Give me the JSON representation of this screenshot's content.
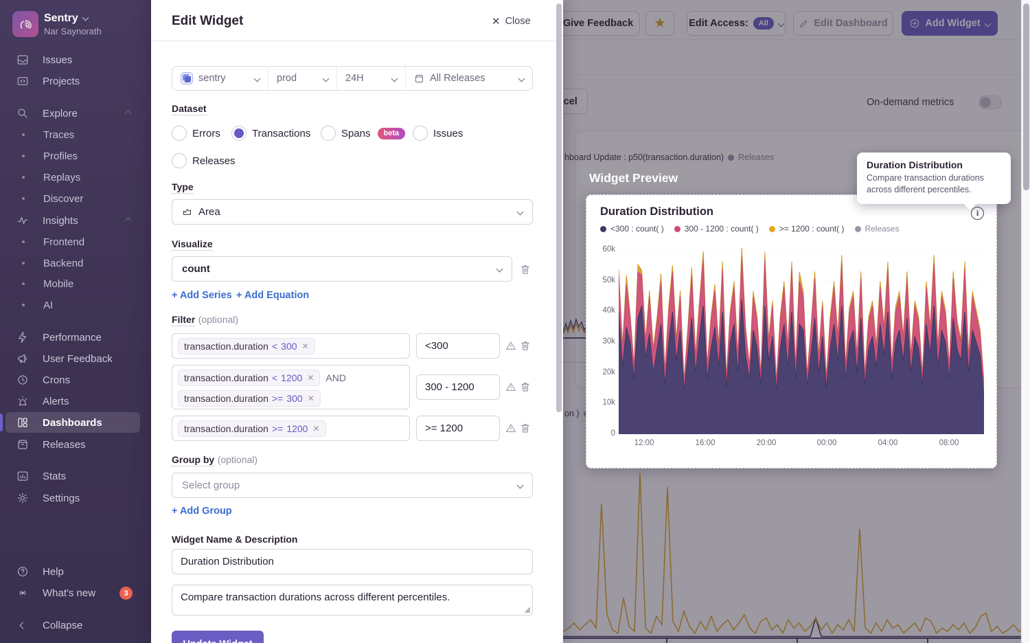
{
  "sidebar": {
    "org_name": "Sentry",
    "org_user": "Nar Saynorath",
    "issues": "Issues",
    "projects": "Projects",
    "explore": "Explore",
    "traces": "Traces",
    "profiles": "Profiles",
    "replays": "Replays",
    "discover": "Discover",
    "insights": "Insights",
    "frontend": "Frontend",
    "backend": "Backend",
    "mobile": "Mobile",
    "ai": "AI",
    "performance": "Performance",
    "user_feedback": "User Feedback",
    "crons": "Crons",
    "alerts": "Alerts",
    "dashboards": "Dashboards",
    "releases": "Releases",
    "stats": "Stats",
    "settings": "Settings",
    "help": "Help",
    "whats_new": "What's new",
    "whats_new_badge": "3",
    "collapse": "Collapse"
  },
  "modal": {
    "title": "Edit Widget",
    "close": "Close",
    "filters": {
      "project": "sentry",
      "env": "prod",
      "period": "24H",
      "releases": "All Releases"
    },
    "dataset": {
      "label": "Dataset",
      "errors": "Errors",
      "transactions": "Transactions",
      "spans": "Spans",
      "beta": "beta",
      "issues": "Issues",
      "releases": "Releases"
    },
    "type": {
      "label": "Type",
      "value": "Area"
    },
    "visualize": {
      "label": "Visualize",
      "value": "count",
      "add_series": "+ Add Series",
      "add_equation": "+ Add Equation"
    },
    "filter": {
      "label": "Filter",
      "optional": "(optional)",
      "rows": [
        {
          "tokens": [
            {
              "key": "transaction.duration",
              "op": "<",
              "val": "300"
            }
          ],
          "alias": "<300"
        },
        {
          "tokens": [
            {
              "key": "transaction.duration",
              "op": "<",
              "val": "1200"
            },
            {
              "key": "transaction.duration",
              "op": ">=",
              "val": "300"
            }
          ],
          "joiner": "AND",
          "alias": "300 - 1200"
        },
        {
          "tokens": [
            {
              "key": "transaction.duration",
              "op": ">=",
              "val": "1200"
            }
          ],
          "alias": ">= 1200"
        }
      ]
    },
    "group_by": {
      "label": "Group by",
      "optional": "(optional)",
      "placeholder": "Select group",
      "add_group": "+ Add Group"
    },
    "name_section": {
      "label": "Widget Name & Description",
      "name": "Duration Distribution",
      "description": "Compare transaction durations across different percentiles."
    },
    "submit": "Update Widget"
  },
  "header": {
    "give_feedback": "Give Feedback",
    "edit_access": "Edit Access:",
    "edit_access_value": "All",
    "edit_dashboard": "Edit Dashboard",
    "add_widget": "Add Widget",
    "cancel": "Cancel",
    "on_demand": "On-demand metrics"
  },
  "background": {
    "legend_fragment": "hboard Update : p50(transaction.duration)",
    "legend_releases": "Releases",
    "fragment_text": "on )"
  },
  "preview": {
    "heading": "Widget Preview",
    "widget_title": "Duration Distribution",
    "legend": [
      {
        "label": "<300 : count( )",
        "color": "#453862"
      },
      {
        "label": "300 - 1200 : count( )",
        "color": "#ce4a6e"
      },
      {
        "label": ">= 1200 : count( )",
        "color": "#e5a718"
      },
      {
        "label": "Releases",
        "color": "#9d93ab"
      }
    ]
  },
  "tooltip": {
    "title": "Duration Distribution",
    "body": "Compare transaction durations across different percentiles."
  },
  "chart_data": [
    {
      "type": "area",
      "stacked": true,
      "title": "Duration Distribution",
      "x_ticks": [
        "12:00",
        "16:00",
        "20:00",
        "00:00",
        "04:00",
        "08:00"
      ],
      "y_ticks": [
        "0",
        "10k",
        "20k",
        "30k",
        "40k",
        "50k",
        "60k"
      ],
      "ylim": [
        0,
        62
      ],
      "unit": "thousands",
      "legend_position": "top-left",
      "grid": "faint-dotted",
      "series": [
        {
          "name": "<300 : count()",
          "color": "#4b4272",
          "edge": "#3d3660",
          "values": [
            40,
            22,
            35,
            30,
            18,
            38,
            42,
            25,
            33,
            20,
            28,
            36,
            16,
            30,
            40,
            24,
            34,
            14,
            26,
            38,
            20,
            32,
            42,
            18,
            28,
            35,
            22,
            40,
            15,
            30,
            36,
            20,
            44,
            26,
            18,
            34,
            28,
            16,
            42,
            24,
            32,
            14,
            28,
            36,
            22,
            40,
            18,
            36,
            34,
            16,
            26,
            38,
            20,
            32,
            15,
            28,
            36,
            24,
            42,
            18,
            30,
            34,
            20,
            38,
            16,
            28,
            32,
            22,
            36,
            26,
            40,
            18,
            30,
            34,
            24,
            38,
            20,
            32,
            28,
            16,
            36,
            26,
            42,
            22,
            34,
            30,
            18,
            38,
            28,
            24,
            40,
            20,
            34,
            30,
            26,
            12
          ]
        },
        {
          "name": "300 - 1200 : count()",
          "color": "#d0567c",
          "edge": "#c44d6e",
          "values": [
            12,
            6,
            14,
            8,
            4,
            15,
            10,
            5,
            12,
            7,
            9,
            14,
            4,
            10,
            13,
            6,
            11,
            3,
            8,
            14,
            5,
            10,
            15,
            4,
            9,
            12,
            6,
            14,
            3,
            9,
            12,
            5,
            14,
            8,
            4,
            11,
            9,
            3,
            15,
            6,
            10,
            3,
            9,
            12,
            6,
            14,
            4,
            14,
            11,
            3,
            8,
            13,
            5,
            10,
            3,
            9,
            12,
            7,
            14,
            4,
            10,
            11,
            5,
            13,
            3,
            9,
            10,
            6,
            12,
            8,
            14,
            4,
            10,
            11,
            7,
            13,
            5,
            10,
            9,
            3,
            12,
            8,
            14,
            6,
            11,
            9,
            4,
            13,
            8,
            6,
            14,
            5,
            11,
            9,
            7,
            4
          ]
        },
        {
          "name": ">= 1200 : count()",
          "color": "#e2a63c",
          "edge": "#d29a25",
          "values": [
            2,
            1,
            3,
            1,
            0.5,
            2.5,
            1.5,
            0.8,
            2,
            1,
            1.5,
            2.5,
            0.6,
            1.8,
            2.2,
            1,
            2,
            0.5,
            1.2,
            2.5,
            0.8,
            1.6,
            2.8,
            0.5,
            1.4,
            2,
            1,
            2.4,
            0.5,
            1.5,
            2,
            0.8,
            3,
            1.2,
            0.6,
            1.8,
            1.4,
            0.5,
            2.5,
            1,
            1.6,
            0.5,
            1.4,
            2,
            1,
            2.4,
            0.6,
            3,
            1.8,
            0.5,
            1.2,
            2.2,
            0.8,
            1.6,
            0.5,
            1.4,
            2,
            1.2,
            2.6,
            0.6,
            1.6,
            1.8,
            0.8,
            2.2,
            0.5,
            1.4,
            1.6,
            1,
            2,
            1.2,
            2.4,
            0.6,
            1.6,
            1.8,
            1.2,
            2.2,
            0.8,
            1.6,
            1.4,
            0.5,
            2,
            1.2,
            2.6,
            1,
            1.8,
            1.5,
            0.6,
            2.2,
            1.2,
            1,
            2.4,
            0.8,
            1.8,
            1.5,
            1.1,
            1
          ]
        }
      ]
    },
    {
      "type": "line",
      "title": "background dashboard widget (dimmed)",
      "ylim": [
        0,
        100
      ],
      "series": [
        {
          "name": "gold-series",
          "color": "#d9a832",
          "values": [
            4,
            6,
            9,
            5,
            8,
            11,
            6,
            80,
            14,
            5,
            3,
            24,
            7,
            4,
            98,
            6,
            3,
            13,
            8,
            90,
            10,
            4,
            16,
            7,
            3,
            10,
            5,
            13,
            4,
            8,
            11,
            5,
            9,
            14,
            6,
            3,
            10,
            12,
            5,
            8,
            3,
            11,
            6,
            9,
            4,
            7,
            12,
            5,
            9,
            3,
            8,
            5,
            11,
            4,
            65,
            6,
            3,
            9,
            4,
            11,
            6,
            8,
            3,
            6,
            9,
            4,
            12,
            10,
            3,
            6,
            4,
            8,
            5,
            9,
            3,
            6,
            13,
            15,
            4,
            7,
            3,
            5,
            8,
            4,
            6,
            9
          ]
        },
        {
          "name": "navy-series",
          "color": "#3f3863",
          "values": [
            1,
            1,
            1,
            1,
            1,
            1,
            1,
            1,
            1,
            1,
            1,
            1,
            1,
            1,
            1,
            1,
            1,
            1,
            1,
            1,
            1,
            1,
            1,
            1,
            1,
            1,
            1,
            1,
            1,
            1,
            1,
            1,
            1,
            1,
            1,
            1,
            1,
            1,
            1,
            1,
            1,
            1,
            1,
            1,
            1,
            1,
            12,
            1,
            1,
            1,
            1,
            1,
            1,
            1,
            1,
            1,
            1,
            1,
            1,
            1,
            1,
            1,
            1,
            1,
            1,
            1,
            1,
            1,
            1,
            1,
            1,
            1,
            1,
            1,
            1,
            1,
            1,
            1,
            1,
            1,
            1,
            1,
            1,
            1,
            1,
            1
          ]
        }
      ]
    }
  ]
}
